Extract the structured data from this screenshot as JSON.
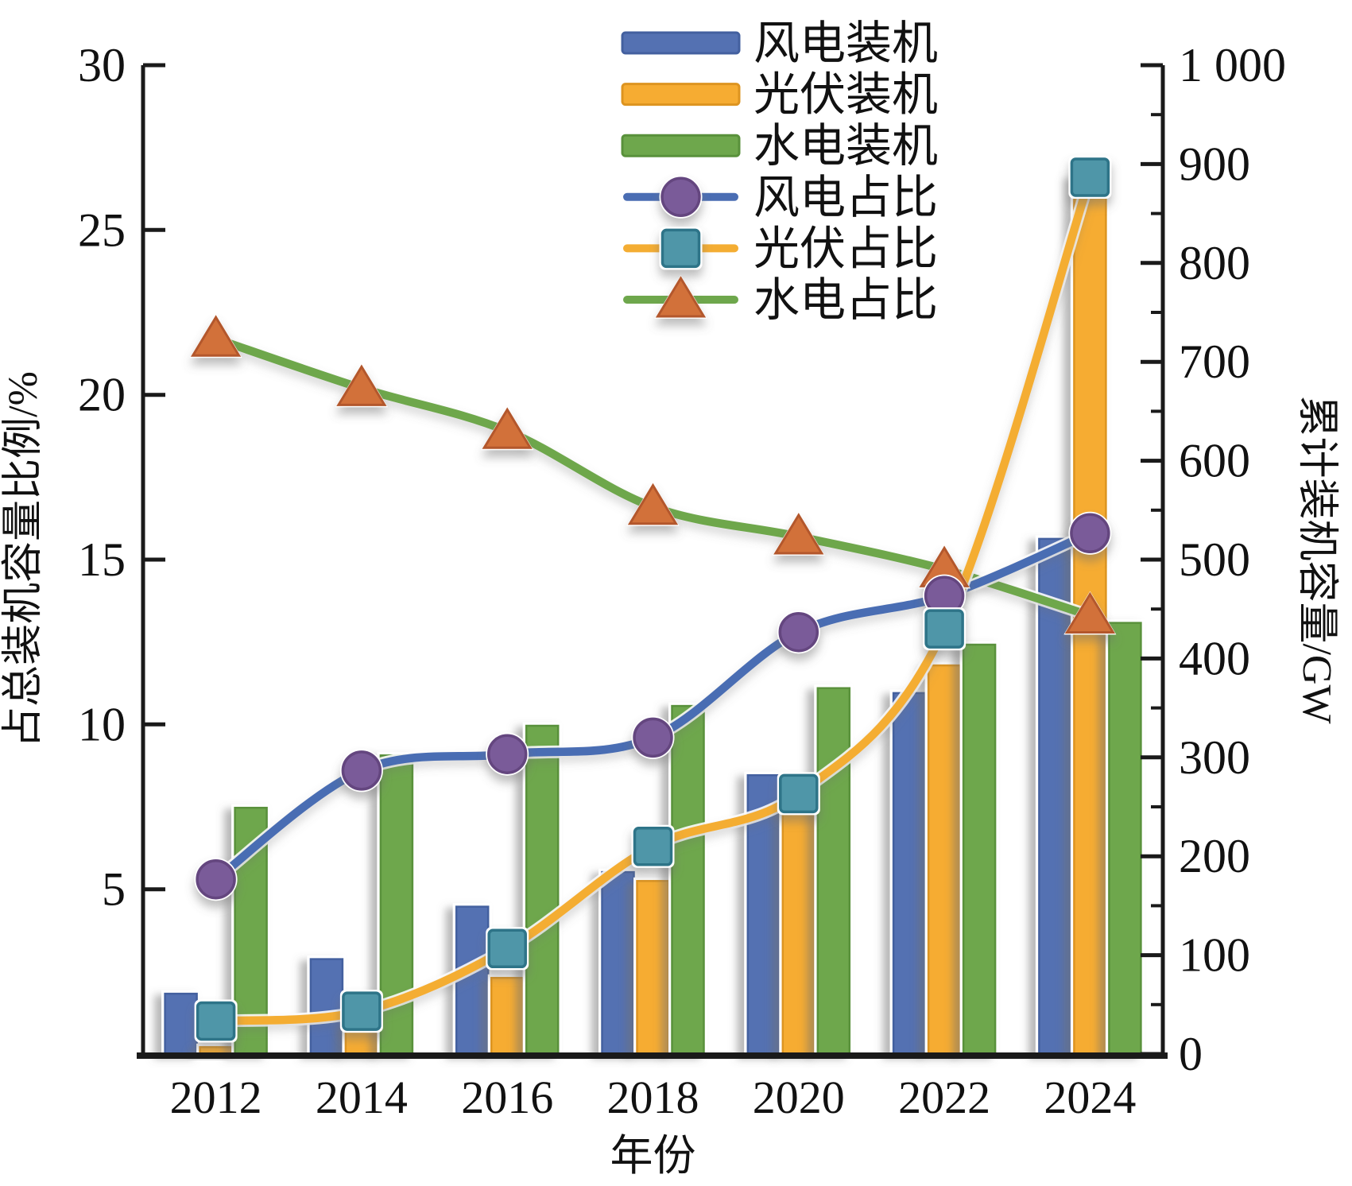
{
  "figure": {
    "background": "#ffffff",
    "axis_color": "#1a1a1a"
  },
  "chart_data": {
    "type": "combo-bar-line",
    "title": "",
    "x_axis": {
      "label": "年份",
      "categories": [
        "2012",
        "2014",
        "2016",
        "2018",
        "2020",
        "2022",
        "2024"
      ]
    },
    "left_axis": {
      "label": "占总装机容量比例/%",
      "min": 0,
      "max": 30,
      "tick_step": 5,
      "tick_values": [
        5,
        10,
        15,
        20,
        25,
        30
      ],
      "tick_labels": [
        "5",
        "10",
        "15",
        "20",
        "25",
        "30"
      ]
    },
    "right_axis": {
      "label": "累计装机容量/GW",
      "min": 0,
      "max": 1000,
      "tick_step": 100,
      "minor_tick_step": 50,
      "tick_values": [
        0,
        100,
        200,
        300,
        400,
        500,
        600,
        700,
        800,
        900,
        1000
      ],
      "tick_labels": [
        "0",
        "100",
        "200",
        "300",
        "400",
        "500",
        "600",
        "700",
        "800",
        "900",
        "1 000"
      ]
    },
    "grid": "off",
    "legend_position": "top-center-inside",
    "bar_series": [
      {
        "key": "wind-capacity",
        "name": "风电装机",
        "axis": "right",
        "color": "#5471B2",
        "border": "#43609F",
        "values_gw": [
          61,
          96,
          149,
          184,
          282,
          365,
          521
        ]
      },
      {
        "key": "pv-capacity",
        "name": "光伏装机",
        "axis": "right",
        "color": "#F6AC32",
        "border": "#DD9420",
        "values_gw": [
          7,
          28,
          77,
          175,
          253,
          393,
          887
        ]
      },
      {
        "key": "hydro-capacity",
        "name": "水电装机",
        "axis": "right",
        "color": "#6EA74C",
        "border": "#59913B",
        "values_gw": [
          249,
          302,
          332,
          352,
          370,
          414,
          436
        ]
      }
    ],
    "line_series": [
      {
        "key": "wind-share",
        "name": "风电占比",
        "axis": "left",
        "line_color": "#4A6DB3",
        "marker": "circle",
        "marker_color": "#7A5B99",
        "marker_border": "#64467F",
        "values_pct": [
          5.3,
          8.6,
          9.1,
          9.6,
          12.8,
          13.9,
          15.8
        ]
      },
      {
        "key": "pv-share",
        "name": "光伏占比",
        "axis": "left",
        "line_color": "#F4AD33",
        "marker": "square",
        "marker_color": "#4F96A8",
        "marker_border": "#2E7488",
        "values_pct": [
          1.0,
          1.3,
          3.2,
          6.3,
          7.9,
          12.9,
          26.6
        ]
      },
      {
        "key": "hydro-share",
        "name": "水电占比",
        "axis": "left",
        "line_color": "#6EA74C",
        "marker": "triangle",
        "marker_color": "#D2713A",
        "marker_border": "#B3572C",
        "values_pct": [
          21.7,
          20.2,
          18.9,
          16.6,
          15.7,
          14.7,
          13.3
        ]
      }
    ]
  }
}
